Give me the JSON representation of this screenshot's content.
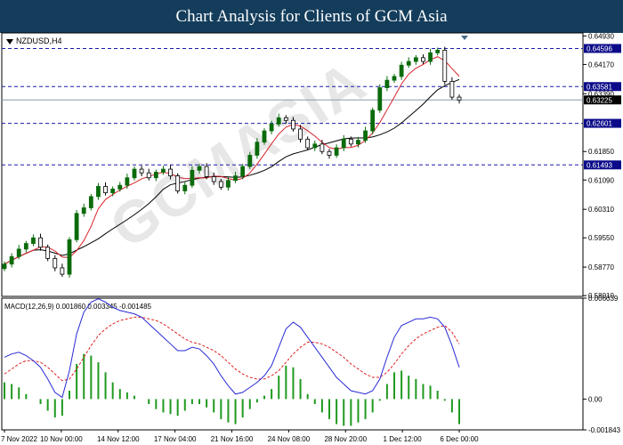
{
  "banner_title": "Chart Analysis for Clients of GCM Asia",
  "symbol_label": "NZDUSD,H4",
  "macd_label": "MACD(12,26,9) 0.001860 0.003345 -0.001485",
  "watermark": "GCMASIA",
  "colors": {
    "banner": "#143d5c",
    "bull_candle": "#0b6b0b",
    "bear_candle": "#000000",
    "ma_fast": "#d8232a",
    "ma_slow": "#000000",
    "level_line": "#1a1aa8",
    "price_tag": "#0b0b8a",
    "current_tag": "#000000",
    "macd_main": "#2a2ad6",
    "macd_signal": "#e02020",
    "macd_hist": "#1f9a1f"
  },
  "chart_data": [
    {
      "type": "line",
      "symbol": "NZDUSD",
      "timeframe": "H4",
      "x_ticks": [
        "7 Nov 2022",
        "10 Nov 00:00",
        "14 Nov 12:00",
        "17 Nov 04:00",
        "21 Nov 16:00",
        "24 Nov 08:00",
        "28 Nov 20:00",
        "1 Dec 12:00",
        "6 Dec 00:00"
      ],
      "y_ticks": [
        "0.64930",
        "0.64170",
        "0.63390",
        "0.61850",
        "0.61090",
        "0.60310",
        "0.59550",
        "0.58770",
        "0.58010"
      ],
      "ylim": [
        0.5799,
        0.6501
      ],
      "levels": [
        "0.64596",
        "0.63581",
        "0.62601",
        "0.61493"
      ],
      "current_price": "0.63225",
      "series": [
        {
          "values": [
            0.5885,
            0.5905,
            0.5925,
            0.594,
            0.5955,
            0.593,
            0.59,
            0.5875,
            0.5858,
            0.595,
            0.602,
            0.6035,
            0.6065,
            0.6092,
            0.6075,
            0.6085,
            0.6095,
            0.6115,
            0.6138,
            0.6128,
            0.6115,
            0.613,
            0.6138,
            0.612,
            0.608,
            0.6095,
            0.6135,
            0.6145,
            0.6118,
            0.6105,
            0.609,
            0.6108,
            0.612,
            0.6145,
            0.6175,
            0.621,
            0.624,
            0.6258,
            0.6275,
            0.6268,
            0.6245,
            0.6218,
            0.6195,
            0.6205,
            0.6185,
            0.6175,
            0.6195,
            0.6218,
            0.6205,
            0.6215,
            0.624,
            0.6295,
            0.6355,
            0.6375,
            0.6385,
            0.6415,
            0.6425,
            0.6435,
            0.6425,
            0.6448,
            0.6455,
            0.6372,
            0.633,
            0.6322
          ]
        }
      ]
    },
    {
      "type": "bar",
      "title": "MACD(12,26,9) 0.001860 0.003345 -0.001485",
      "y_ticks": [
        "0.006039",
        "0.00",
        "-0.001843"
      ],
      "ylim": [
        -0.001843,
        0.006039
      ],
      "series": [
        {
          "name": "MACD",
          "values": [
            0.0025,
            0.0027,
            0.0028,
            0.0026,
            0.0023,
            0.0019,
            0.0012,
            0.0004,
            0.0001,
            0.0017,
            0.0039,
            0.0052,
            0.0058,
            0.006,
            0.0058,
            0.0055,
            0.0053,
            0.0052,
            0.0051,
            0.0049,
            0.0045,
            0.0041,
            0.0037,
            0.0033,
            0.0029,
            0.0029,
            0.0031,
            0.003,
            0.0026,
            0.0021,
            0.0014,
            0.0008,
            0.0003,
            0.0004,
            0.0007,
            0.001,
            0.0014,
            0.002,
            0.0031,
            0.0042,
            0.0046,
            0.0043,
            0.0037,
            0.0031,
            0.0025,
            0.0019,
            0.0013,
            0.0009,
            0.0005,
            0.0004,
            0.0003,
            0.0005,
            0.0012,
            0.0025,
            0.0037,
            0.0044,
            0.0046,
            0.0048,
            0.0048,
            0.0049,
            0.0048,
            0.0043,
            0.0032,
            0.0019
          ]
        },
        {
          "name": "Signal",
          "values": [
            0.0015,
            0.0018,
            0.0021,
            0.0023,
            0.0023,
            0.0022,
            0.0019,
            0.0015,
            0.0011,
            0.0012,
            0.0018,
            0.0025,
            0.0032,
            0.0038,
            0.0042,
            0.0045,
            0.0047,
            0.0048,
            0.0049,
            0.0049,
            0.0048,
            0.0047,
            0.0045,
            0.0042,
            0.0039,
            0.0036,
            0.0034,
            0.0033,
            0.0031,
            0.0029,
            0.0026,
            0.0022,
            0.0018,
            0.0015,
            0.0013,
            0.0012,
            0.0012,
            0.0014,
            0.0017,
            0.0022,
            0.0027,
            0.0031,
            0.0034,
            0.0034,
            0.0033,
            0.0031,
            0.0028,
            0.0025,
            0.0021,
            0.0018,
            0.0015,
            0.0013,
            0.0013,
            0.0016,
            0.0021,
            0.0027,
            0.0032,
            0.0036,
            0.0039,
            0.0041,
            0.0043,
            0.0044,
            0.004,
            0.0033
          ]
        },
        {
          "name": "Histogram",
          "values": [
            0.001,
            0.0009,
            0.0007,
            0.0003,
            0.0,
            -0.0003,
            -0.0007,
            -0.0011,
            -0.001,
            0.0005,
            0.0021,
            0.0027,
            0.0026,
            0.0022,
            0.0016,
            0.001,
            0.0006,
            0.0004,
            0.0002,
            0.0,
            -0.0003,
            -0.0006,
            -0.0008,
            -0.0009,
            -0.001,
            -0.0007,
            -0.0003,
            -0.0003,
            -0.0005,
            -0.0008,
            -0.0012,
            -0.0014,
            -0.0015,
            -0.0011,
            -0.0006,
            -0.0002,
            0.0002,
            0.0006,
            0.0014,
            0.002,
            0.0019,
            0.0012,
            0.0003,
            -0.0003,
            -0.0008,
            -0.0012,
            -0.0015,
            -0.0016,
            -0.0016,
            -0.0014,
            -0.0012,
            -0.0008,
            -0.0001,
            0.0009,
            0.0016,
            0.0017,
            0.0014,
            0.0012,
            0.0009,
            0.0008,
            0.0005,
            -0.0001,
            -0.0008,
            -0.0015
          ]
        }
      ]
    }
  ]
}
